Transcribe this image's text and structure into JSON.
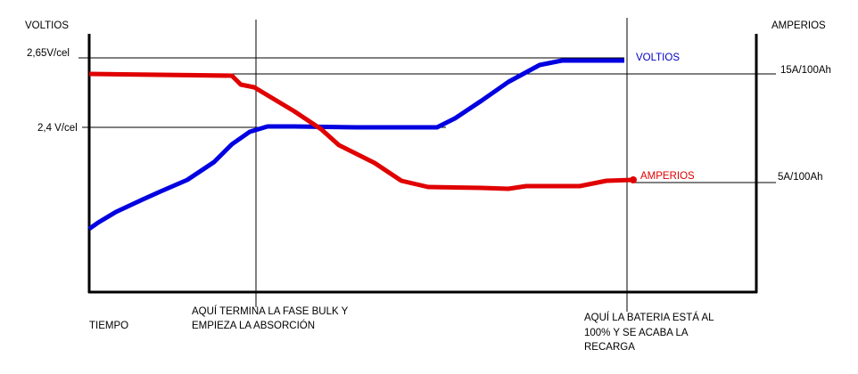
{
  "axes": {
    "left_title": "VOLTIOS",
    "right_title": "AMPERIOS",
    "x_title": "TIEMPO"
  },
  "levels": {
    "v_high": "2,65V/cel",
    "v_low": "2,4 V/cel",
    "a_high": "15A/100Ah",
    "a_low": "5A/100Ah"
  },
  "curves": {
    "voltage": "VOLTIOS",
    "current": "AMPERIOS"
  },
  "notes": {
    "bulk_end": [
      "AQUÍ TERMINA LA FASE BULK Y",
      "EMPIEZA LA ABSORCIÓN"
    ],
    "charge_end": [
      "AQUÍ LA BATERIA ESTÁ AL",
      "100% Y SE ACABA LA",
      "RECARGA"
    ]
  }
}
